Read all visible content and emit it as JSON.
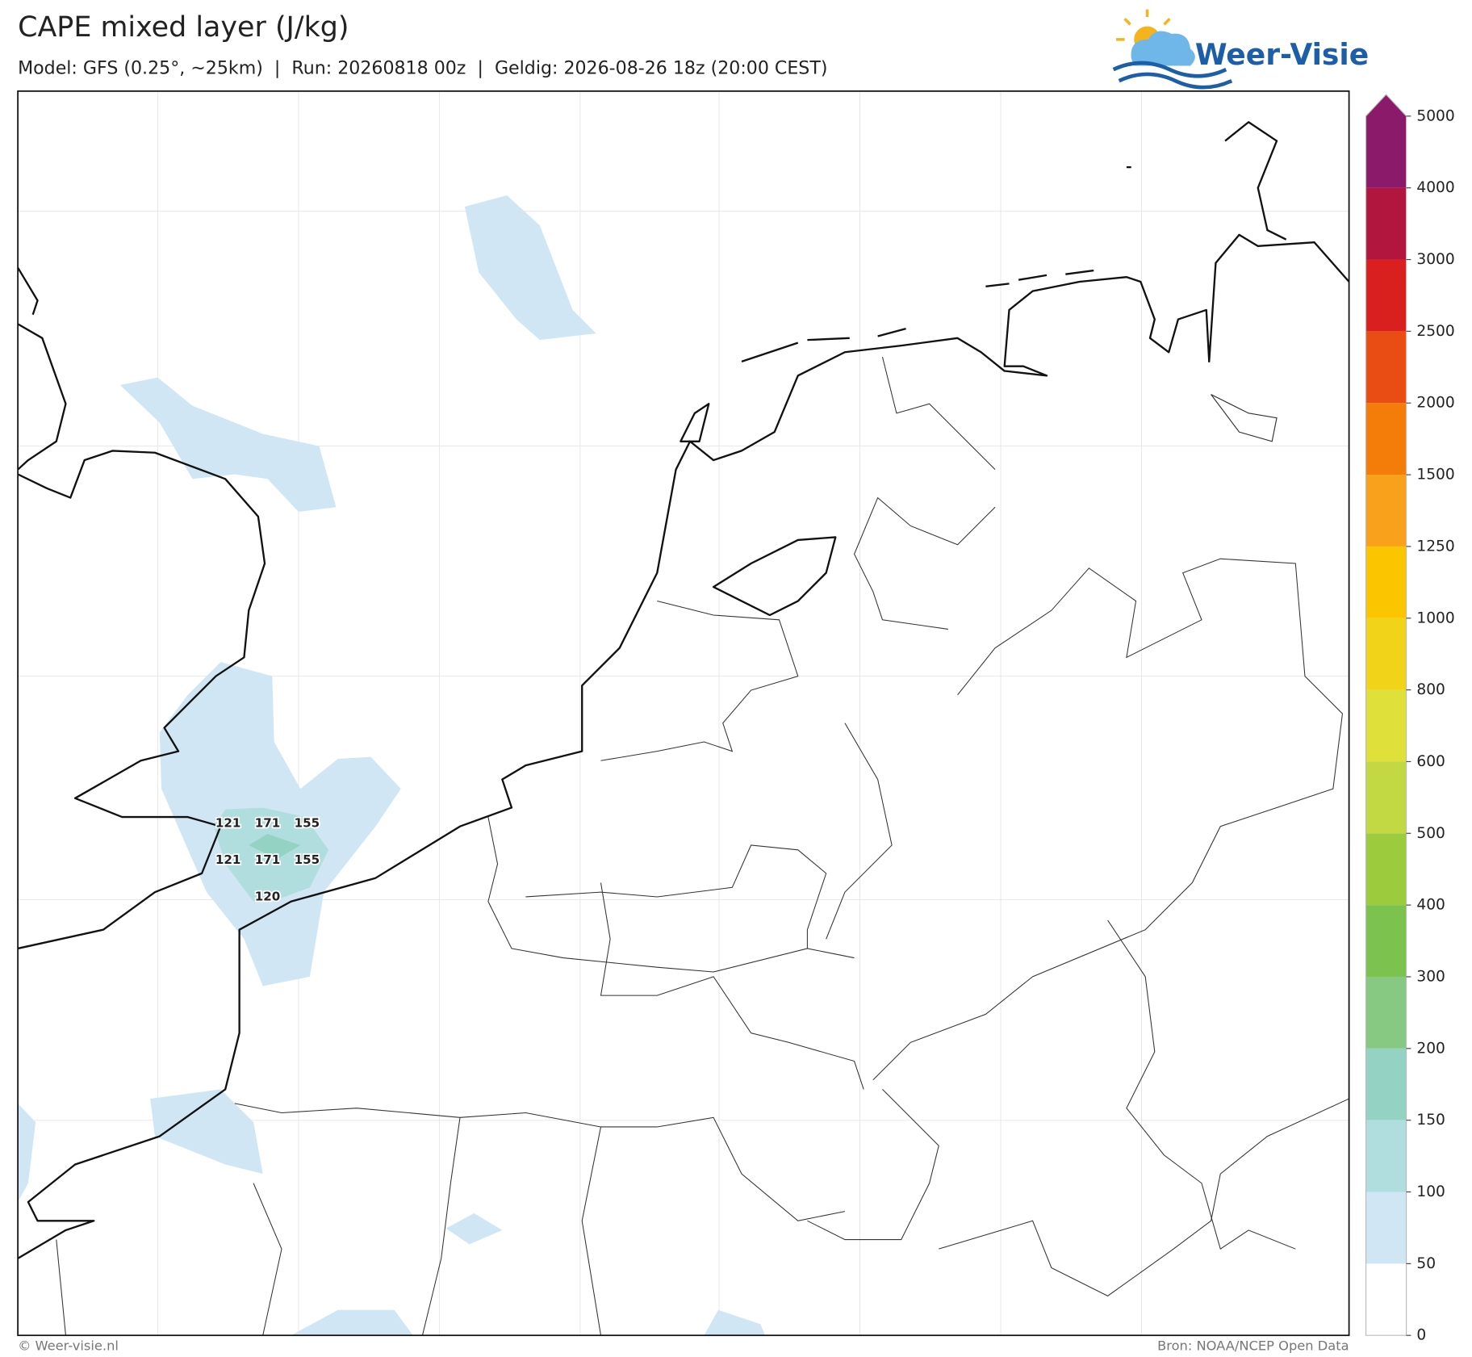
{
  "header": {
    "title": "CAPE mixed layer (J/kg)",
    "subtitle": "Model: GFS (0.25°, ~25km)  |  Run: 20260818 00z  |  Geldig: 2026-08-26 18z (20:00 CEST)",
    "logo": "Weer-Visie"
  },
  "map": {
    "value_labels": [
      121,
      171,
      155,
      121,
      171,
      155,
      120
    ]
  },
  "colorbar": {
    "levels": [
      0,
      50,
      100,
      150,
      200,
      300,
      400,
      500,
      600,
      800,
      1000,
      1250,
      1500,
      2000,
      2500,
      3000,
      4000,
      5000
    ],
    "colors": [
      "#ffffff",
      "#d0e6f5",
      "#b0dede",
      "#94d3c4",
      "#87c983",
      "#7cc24f",
      "#9ccb3e",
      "#c2d944",
      "#dfe03a",
      "#f1d31a",
      "#fbc600",
      "#f9a11a",
      "#f47d0a",
      "#ea4d14",
      "#d9201f",
      "#b2163e",
      "#8b1a6a"
    ]
  },
  "footer": {
    "credit": "© Weer-visie.nl",
    "source": "Bron: NOAA/NCEP Open Data"
  }
}
